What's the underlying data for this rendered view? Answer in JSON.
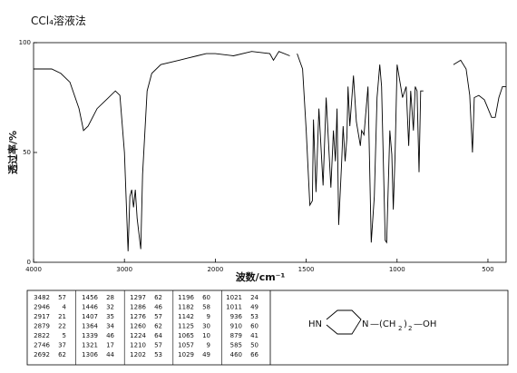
{
  "chart_data": {
    "type": "line",
    "title": "CCl₄溶液法",
    "x_label": "波数/cm⁻¹",
    "y_label": "透过率/%",
    "xlim": [
      4000,
      400
    ],
    "xticks": [
      4000,
      3000,
      2000,
      1500,
      1000,
      500
    ],
    "ylim": [
      0,
      100
    ],
    "yticks": [
      100,
      50,
      0
    ],
    "x": [
      4000,
      3800,
      3700,
      3600,
      3500,
      3450,
      3400,
      3300,
      3200,
      3100,
      3050,
      3000,
      2960,
      2940,
      2920,
      2900,
      2880,
      2860,
      2820,
      2800,
      2750,
      2700,
      2600,
      2400,
      2300,
      2200,
      2100,
      2000,
      1900,
      1800,
      1700,
      1680,
      1650,
      1590,
      1570,
      1550,
      1520,
      1500,
      1480,
      1466,
      1460,
      1446,
      1430,
      1407,
      1390,
      1364,
      1350,
      1339,
      1330,
      1321,
      1306,
      1297,
      1286,
      1276,
      1270,
      1260,
      1240,
      1224,
      1210,
      1202,
      1195,
      1182,
      1160,
      1142,
      1125,
      1110,
      1095,
      1085,
      1065,
      1057,
      1040,
      1029,
      1021,
      1011,
      1000,
      990,
      970,
      950,
      936,
      925,
      910,
      900,
      890,
      879,
      870,
      855,
      775,
      690,
      650,
      620,
      600,
      585,
      575,
      550,
      520,
      500,
      480,
      460,
      440,
      420,
      400
    ],
    "series": [
      {
        "color": "#000000",
        "values": [
          88,
          88,
          86,
          82,
          70,
          60,
          62,
          70,
          74,
          78,
          76,
          50,
          5,
          30,
          33,
          25,
          33,
          20,
          6,
          40,
          78,
          86,
          90,
          92,
          93,
          94,
          95,
          95,
          94,
          96,
          95,
          92,
          96,
          94,
          null,
          95,
          88,
          60,
          26,
          28,
          65,
          32,
          70,
          35,
          75,
          34,
          60,
          46,
          70,
          17,
          44,
          62,
          46,
          57,
          80,
          62,
          85,
          64,
          57,
          53,
          60,
          58,
          80,
          9,
          30,
          75,
          90,
          80,
          10,
          9,
          60,
          49,
          24,
          49,
          90,
          85,
          75,
          80,
          53,
          78,
          60,
          80,
          78,
          41,
          78,
          78,
          null,
          90,
          92,
          88,
          76,
          50,
          75,
          76,
          74,
          70,
          66,
          66,
          75,
          80,
          80
        ]
      }
    ]
  },
  "peak_table": {
    "rows": [
      [
        3482,
        57,
        1456,
        28,
        1297,
        62,
        1196,
        60,
        1021,
        24
      ],
      [
        2946,
        4,
        1446,
        32,
        1286,
        46,
        1182,
        58,
        1011,
        49
      ],
      [
        2917,
        21,
        1407,
        35,
        1276,
        57,
        1142,
        9,
        936,
        53
      ],
      [
        2879,
        22,
        1364,
        34,
        1260,
        62,
        1125,
        30,
        910,
        60
      ],
      [
        2822,
        5,
        1339,
        46,
        1224,
        64,
        1065,
        10,
        879,
        41
      ],
      [
        2746,
        37,
        1321,
        17,
        1210,
        57,
        1057,
        9,
        585,
        50
      ],
      [
        2692,
        62,
        1306,
        44,
        1202,
        53,
        1029,
        49,
        460,
        66
      ]
    ]
  },
  "structure": {
    "nh": "HN",
    "n": "N",
    "chain_open": "—(CH",
    "sub1": "2",
    "chain_close": ")",
    "sub2": "2",
    "oh": "—OH"
  }
}
